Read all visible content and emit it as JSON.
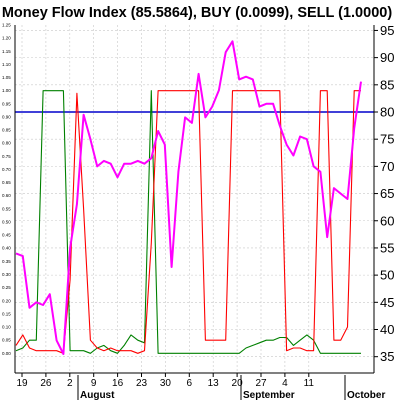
{
  "chart_data": {
    "type": "line",
    "title": "Money Flow Index (85.5864), BUY (0.0099), SELL (1.0000)",
    "y_right": {
      "range": [
        32,
        96
      ],
      "ticks": [
        35,
        40,
        45,
        50,
        55,
        60,
        65,
        70,
        75,
        80,
        85,
        90,
        95
      ]
    },
    "y_left": {
      "range": [
        -0.075,
        1.25
      ],
      "ticks": [
        "0.00",
        "0.05",
        "0.10",
        "0.15",
        "0.20",
        "0.25",
        "0.30",
        "0.35",
        "0.40",
        "0.45",
        "0.50",
        "0.55",
        "0.60",
        "0.65",
        "0.70",
        "0.75",
        "0.80",
        "0.85",
        "0.90",
        "0.95",
        "1.00",
        "1.05",
        "1.10",
        "1.15",
        "1.20",
        "1.25"
      ]
    },
    "x_ticks": [
      "19",
      "26",
      "2",
      "9",
      "16",
      "23",
      "30",
      "6",
      "13",
      "20",
      "27",
      "4",
      "11"
    ],
    "months": [
      "August",
      "September",
      "October"
    ],
    "reference_line": {
      "value": 80,
      "color": "#0000cc"
    },
    "grid": true,
    "series": [
      {
        "color": "#ff00ff",
        "axis": "right",
        "values": [
          54,
          53.5,
          44,
          45,
          44.5,
          46.5,
          38,
          35.5,
          55,
          63,
          79.5,
          75,
          70,
          71,
          70.5,
          68,
          70.5,
          70.5,
          71,
          70.5,
          71.5,
          76.5,
          74,
          51.5,
          69,
          79,
          78,
          87,
          79,
          81,
          84,
          91,
          93,
          86,
          86.5,
          86,
          81,
          81.5,
          81.5,
          77.5,
          74,
          72,
          75.5,
          75,
          70,
          69,
          57,
          66,
          65,
          64,
          77,
          85.5864
        ]
      },
      {
        "color": "#ff0000",
        "axis": "left",
        "values": [
          0.03,
          0.07,
          0.02,
          0.01,
          0.01,
          0.01,
          0.01,
          0.0,
          0.28,
          0.99,
          0.55,
          0.05,
          0.02,
          0.01,
          0.02,
          0.01,
          0.01,
          0.01,
          0.0,
          0.01,
          0.42,
          1.0,
          1.0,
          1.0,
          1.0,
          1.0,
          1.0,
          1.0,
          0.05,
          0.05,
          0.05,
          0.05,
          1.0,
          1.0,
          1.0,
          1.0,
          1.0,
          1.0,
          1.0,
          1.0,
          0.01,
          0.02,
          0.02,
          0.01,
          0.01,
          1.0,
          1.0,
          0.05,
          0.05,
          0.1,
          1.0,
          1.0
        ]
      },
      {
        "color": "#008000",
        "axis": "left",
        "values": [
          0.01,
          0.02,
          0.05,
          0.05,
          1.0,
          1.0,
          1.0,
          1.0,
          0.01,
          0.01,
          0.01,
          0.0,
          0.02,
          0.03,
          0.01,
          0.0,
          0.03,
          0.07,
          0.05,
          0.04,
          1.0,
          0.0,
          0.0,
          0.0,
          0.0,
          0.0,
          0.0,
          0.0,
          0.0,
          0.0,
          0.0,
          0.0,
          0.0,
          0.0,
          0.02,
          0.03,
          0.04,
          0.05,
          0.05,
          0.06,
          0.06,
          0.03,
          0.05,
          0.07,
          0.05,
          0.0,
          0.0,
          0.0,
          0.0,
          0.0,
          0.0,
          0.0
        ]
      }
    ]
  }
}
